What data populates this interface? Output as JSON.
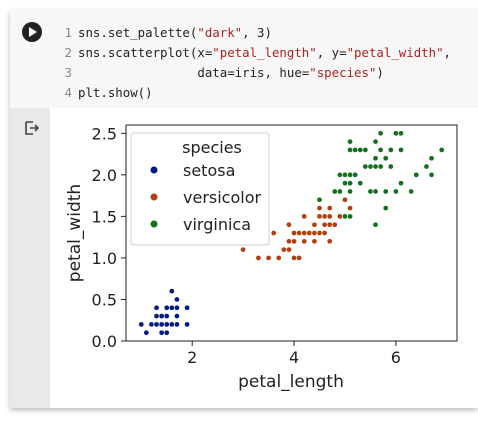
{
  "code": {
    "lines": [
      {
        "num": "1",
        "parts": [
          {
            "t": "sns.set_palette("
          },
          {
            "t": "\"dark\"",
            "s": true
          },
          {
            "t": ", 3)"
          }
        ]
      },
      {
        "num": "2",
        "parts": [
          {
            "t": "sns.scatterplot(x="
          },
          {
            "t": "\"petal_length\"",
            "s": true
          },
          {
            "t": ", y="
          },
          {
            "t": "\"petal_width\"",
            "s": true
          },
          {
            "t": ","
          }
        ]
      },
      {
        "num": "3",
        "parts": [
          {
            "t": "                data=iris, hue="
          },
          {
            "t": "\"species\"",
            "s": true
          },
          {
            "t": ")"
          }
        ]
      },
      {
        "num": "4",
        "parts": [
          {
            "t": "plt.show()"
          }
        ]
      }
    ]
  },
  "icons": {
    "run": "play-icon",
    "output": "output-redirect-icon"
  },
  "colors": {
    "setosa": "#001c7f",
    "versicolor": "#b1400d",
    "virginica": "#12711c"
  },
  "chart_data": {
    "type": "scatter",
    "xlabel": "petal_length",
    "ylabel": "petal_width",
    "xlim": [
      0.7,
      7.2
    ],
    "ylim": [
      0.0,
      2.6
    ],
    "xticks": [
      2,
      4,
      6
    ],
    "yticks": [
      0.0,
      0.5,
      1.0,
      1.5,
      2.0,
      2.5
    ],
    "grid": false,
    "legend": {
      "title": "species",
      "placement": "upper-left"
    },
    "series": [
      {
        "name": "setosa",
        "points": [
          [
            1.4,
            0.2
          ],
          [
            1.4,
            0.2
          ],
          [
            1.3,
            0.2
          ],
          [
            1.5,
            0.2
          ],
          [
            1.4,
            0.2
          ],
          [
            1.7,
            0.4
          ],
          [
            1.4,
            0.3
          ],
          [
            1.5,
            0.2
          ],
          [
            1.4,
            0.2
          ],
          [
            1.5,
            0.1
          ],
          [
            1.5,
            0.2
          ],
          [
            1.6,
            0.2
          ],
          [
            1.4,
            0.1
          ],
          [
            1.1,
            0.1
          ],
          [
            1.2,
            0.2
          ],
          [
            1.5,
            0.4
          ],
          [
            1.3,
            0.4
          ],
          [
            1.4,
            0.3
          ],
          [
            1.7,
            0.3
          ],
          [
            1.5,
            0.3
          ],
          [
            1.7,
            0.2
          ],
          [
            1.5,
            0.4
          ],
          [
            1.0,
            0.2
          ],
          [
            1.7,
            0.5
          ],
          [
            1.9,
            0.2
          ],
          [
            1.6,
            0.2
          ],
          [
            1.6,
            0.4
          ],
          [
            1.5,
            0.2
          ],
          [
            1.4,
            0.2
          ],
          [
            1.6,
            0.2
          ],
          [
            1.6,
            0.2
          ],
          [
            1.5,
            0.4
          ],
          [
            1.5,
            0.1
          ],
          [
            1.4,
            0.2
          ],
          [
            1.5,
            0.2
          ],
          [
            1.2,
            0.2
          ],
          [
            1.3,
            0.2
          ],
          [
            1.4,
            0.1
          ],
          [
            1.3,
            0.2
          ],
          [
            1.5,
            0.2
          ],
          [
            1.3,
            0.3
          ],
          [
            1.3,
            0.3
          ],
          [
            1.3,
            0.2
          ],
          [
            1.6,
            0.6
          ],
          [
            1.9,
            0.4
          ],
          [
            1.4,
            0.3
          ],
          [
            1.6,
            0.2
          ],
          [
            1.4,
            0.2
          ],
          [
            1.5,
            0.2
          ],
          [
            1.4,
            0.2
          ]
        ]
      },
      {
        "name": "versicolor",
        "points": [
          [
            4.7,
            1.4
          ],
          [
            4.5,
            1.5
          ],
          [
            4.9,
            1.5
          ],
          [
            4.0,
            1.3
          ],
          [
            4.6,
            1.5
          ],
          [
            4.5,
            1.3
          ],
          [
            4.7,
            1.6
          ],
          [
            3.3,
            1.0
          ],
          [
            4.6,
            1.3
          ],
          [
            3.9,
            1.4
          ],
          [
            3.5,
            1.0
          ],
          [
            4.2,
            1.5
          ],
          [
            4.0,
            1.0
          ],
          [
            4.7,
            1.4
          ],
          [
            3.6,
            1.3
          ],
          [
            4.4,
            1.4
          ],
          [
            4.5,
            1.5
          ],
          [
            4.1,
            1.0
          ],
          [
            4.5,
            1.5
          ],
          [
            3.9,
            1.1
          ],
          [
            4.8,
            1.8
          ],
          [
            4.0,
            1.3
          ],
          [
            4.9,
            1.5
          ],
          [
            4.7,
            1.2
          ],
          [
            4.3,
            1.3
          ],
          [
            4.4,
            1.4
          ],
          [
            4.8,
            1.4
          ],
          [
            5.0,
            1.7
          ],
          [
            4.5,
            1.5
          ],
          [
            3.5,
            1.0
          ],
          [
            3.8,
            1.1
          ],
          [
            3.7,
            1.0
          ],
          [
            3.9,
            1.2
          ],
          [
            5.1,
            1.6
          ],
          [
            4.5,
            1.5
          ],
          [
            4.5,
            1.6
          ],
          [
            4.7,
            1.5
          ],
          [
            4.4,
            1.3
          ],
          [
            4.1,
            1.3
          ],
          [
            4.0,
            1.3
          ],
          [
            4.4,
            1.2
          ],
          [
            4.6,
            1.4
          ],
          [
            4.0,
            1.2
          ],
          [
            3.3,
            1.0
          ],
          [
            4.2,
            1.3
          ],
          [
            4.2,
            1.2
          ],
          [
            4.2,
            1.3
          ],
          [
            4.3,
            1.3
          ],
          [
            3.0,
            1.1
          ],
          [
            4.1,
            1.3
          ]
        ]
      },
      {
        "name": "virginica",
        "points": [
          [
            6.0,
            2.5
          ],
          [
            5.1,
            1.9
          ],
          [
            5.9,
            2.1
          ],
          [
            5.6,
            1.8
          ],
          [
            5.8,
            2.2
          ],
          [
            6.6,
            2.1
          ],
          [
            4.5,
            1.7
          ],
          [
            6.3,
            1.8
          ],
          [
            5.8,
            1.8
          ],
          [
            6.1,
            2.5
          ],
          [
            5.1,
            2.0
          ],
          [
            5.3,
            1.9
          ],
          [
            5.5,
            2.1
          ],
          [
            5.0,
            2.0
          ],
          [
            5.1,
            2.4
          ],
          [
            5.3,
            2.3
          ],
          [
            5.5,
            1.8
          ],
          [
            6.7,
            2.2
          ],
          [
            6.9,
            2.3
          ],
          [
            5.0,
            1.5
          ],
          [
            5.7,
            2.3
          ],
          [
            4.9,
            2.0
          ],
          [
            6.7,
            2.0
          ],
          [
            4.9,
            1.8
          ],
          [
            5.7,
            2.1
          ],
          [
            6.0,
            1.8
          ],
          [
            4.8,
            1.8
          ],
          [
            4.9,
            1.8
          ],
          [
            5.6,
            2.1
          ],
          [
            5.8,
            1.6
          ],
          [
            6.1,
            1.9
          ],
          [
            6.4,
            2.0
          ],
          [
            5.6,
            2.2
          ],
          [
            5.1,
            1.5
          ],
          [
            5.6,
            1.4
          ],
          [
            6.1,
            2.3
          ],
          [
            5.6,
            2.4
          ],
          [
            5.5,
            1.8
          ],
          [
            4.8,
            1.8
          ],
          [
            5.4,
            2.1
          ],
          [
            5.6,
            2.4
          ],
          [
            5.1,
            2.3
          ],
          [
            5.1,
            1.9
          ],
          [
            5.9,
            2.3
          ],
          [
            5.7,
            2.5
          ],
          [
            5.2,
            2.3
          ],
          [
            5.0,
            1.9
          ],
          [
            5.2,
            2.0
          ],
          [
            5.4,
            2.3
          ],
          [
            5.1,
            1.8
          ]
        ]
      }
    ]
  }
}
